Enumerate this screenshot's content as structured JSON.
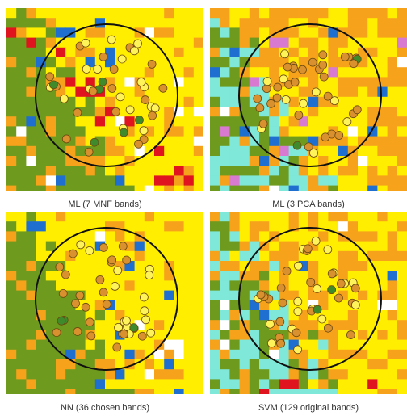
{
  "panels": [
    {
      "caption": "ML (7 MNF bands)"
    },
    {
      "caption": "ML (3 PCA bands)"
    },
    {
      "caption": "NN (36 chosen bands)"
    },
    {
      "caption": "SVM (129 original bands)"
    }
  ]
}
